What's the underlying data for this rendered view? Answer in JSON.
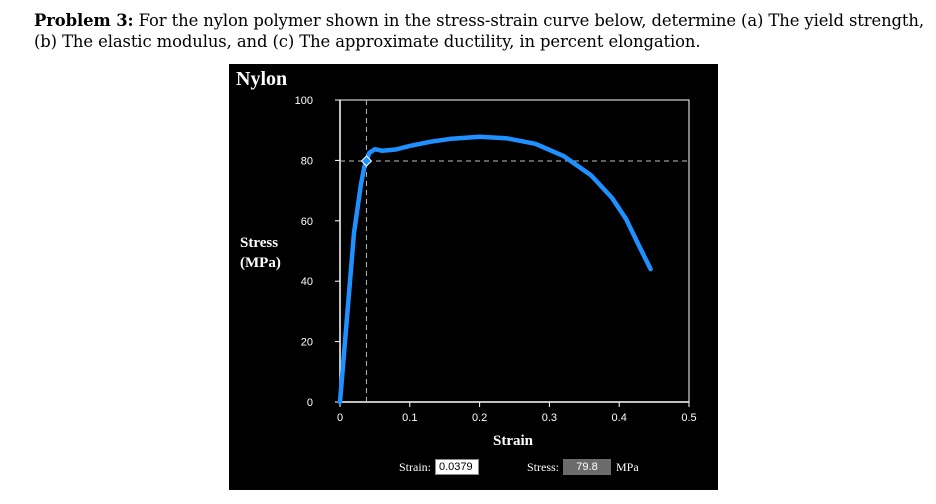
{
  "problem": {
    "number_label": "Problem 3:",
    "text": "For the nylon polymer shown in the stress-strain curve below, determine (a) The yield strength, (b) The elastic modulus, and (c) The approximate ductility, in percent elongation."
  },
  "panel": {
    "title": "Nylon",
    "ylabel_line1": "Stress",
    "ylabel_line2": "(MPa)",
    "xlabel": "Strain"
  },
  "readout": {
    "strain_label": "Strain:",
    "strain_value": "0.0379",
    "stress_label": "Stress:",
    "stress_value": "79.8",
    "stress_unit": "MPa"
  },
  "chart_data": {
    "type": "line",
    "xlabel": "Strain",
    "ylabel": "Stress (MPa)",
    "xlim": [
      0,
      0.5
    ],
    "ylim": [
      0,
      100
    ],
    "x_ticks": [
      "0",
      "0.1",
      "0.2",
      "0.3",
      "0.4",
      "0.5"
    ],
    "y_ticks": [
      "0",
      "20",
      "40",
      "60",
      "80",
      "100"
    ],
    "grid": false,
    "cursor": {
      "x": 0.0379,
      "y": 79.8
    },
    "series": [
      {
        "color": "#1e90ff",
        "x": [
          0,
          0.01,
          0.02,
          0.03,
          0.035,
          0.0379,
          0.042,
          0.05,
          0.06,
          0.08,
          0.1,
          0.13,
          0.16,
          0.2,
          0.24,
          0.28,
          0.32,
          0.36,
          0.39,
          0.41,
          0.43,
          0.445
        ],
        "y": [
          0,
          28,
          56,
          72,
          78,
          79.8,
          82.5,
          83.7,
          83.2,
          83.6,
          84.8,
          86.2,
          87.2,
          87.8,
          87.3,
          85.5,
          81.5,
          75,
          67.5,
          60.5,
          51,
          44
        ]
      }
    ]
  }
}
